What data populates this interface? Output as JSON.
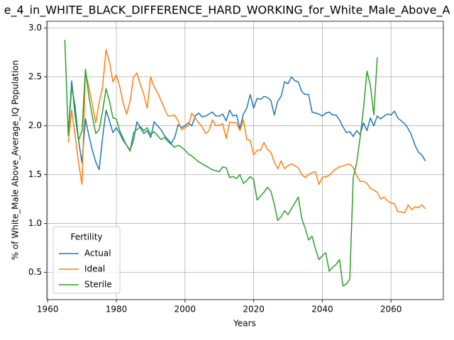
{
  "chart_data": {
    "type": "line",
    "title": "e_4_in_WHITE_BLACK_DIFFERENCE_HARD_WORKING_for_White_Male_Above_A",
    "xlabel": "Years",
    "ylabel": "% of White_Male Above_Average_IQ Population",
    "x": [
      1965,
      1966,
      1967,
      1968,
      1969,
      1970,
      1971,
      1972,
      1973,
      1974,
      1975,
      1976,
      1977,
      1978,
      1979,
      1980,
      1981,
      1982,
      1983,
      1984,
      1985,
      1986,
      1987,
      1988,
      1989,
      1990,
      1991,
      1992,
      1993,
      1994,
      1995,
      1996,
      1997,
      1998,
      1999,
      2000,
      2001,
      2002,
      2003,
      2004,
      2005,
      2006,
      2007,
      2008,
      2009,
      2010,
      2011,
      2012,
      2013,
      2014,
      2015,
      2016,
      2017,
      2018,
      2019,
      2020,
      2021,
      2022,
      2023,
      2024,
      2025,
      2026,
      2027,
      2028,
      2029,
      2030,
      2031,
      2032,
      2033,
      2034,
      2035,
      2036,
      2037,
      2038,
      2039,
      2040,
      2041,
      2042,
      2043,
      2044,
      2045,
      2046,
      2047,
      2048,
      2049,
      2050,
      2051,
      2052,
      2053,
      2054,
      2055,
      2056,
      2057,
      2058,
      2059,
      2060,
      2061,
      2062,
      2063,
      2064,
      2065,
      2066,
      2067,
      2068,
      2069,
      2070
    ],
    "series": [
      {
        "name": "Actual",
        "color": "#1f77b4",
        "values": [
          null,
          1.92,
          2.46,
          2.1,
          1.85,
          1.62,
          2.07,
          1.9,
          1.75,
          1.63,
          1.55,
          1.88,
          2.16,
          2.05,
          1.93,
          1.98,
          1.92,
          1.85,
          1.8,
          1.75,
          1.85,
          2.04,
          1.98,
          1.92,
          1.95,
          1.88,
          2.04,
          2.0,
          1.96,
          1.9,
          1.86,
          1.82,
          1.88,
          2.01,
          1.98,
          2.0,
          2.03,
          2.0,
          2.1,
          2.13,
          2.09,
          2.1,
          2.12,
          2.14,
          2.1,
          2.1,
          2.12,
          2.05,
          2.16,
          2.1,
          2.11,
          1.97,
          2.12,
          2.18,
          2.32,
          2.18,
          2.28,
          2.27,
          2.3,
          2.29,
          2.26,
          2.11,
          2.25,
          2.3,
          2.45,
          2.43,
          2.5,
          2.46,
          2.45,
          2.35,
          2.32,
          2.32,
          2.14,
          2.13,
          2.12,
          2.1,
          2.13,
          2.14,
          2.11,
          2.11,
          2.06,
          1.99,
          1.93,
          1.94,
          1.89,
          1.95,
          1.91,
          2.03,
          1.95,
          2.08,
          2.0,
          2.1,
          2.07,
          2.1,
          2.12,
          2.11,
          2.15,
          2.08,
          2.05,
          2.02,
          1.97,
          1.9,
          1.8,
          1.73,
          1.7,
          1.64
        ]
      },
      {
        "name": "Ideal",
        "color": "#ff7f0e",
        "values": [
          null,
          1.83,
          2.16,
          1.9,
          1.62,
          1.4,
          2.55,
          2.4,
          2.22,
          2.03,
          2.24,
          2.4,
          2.78,
          2.65,
          2.45,
          2.52,
          2.4,
          2.23,
          2.12,
          2.25,
          2.5,
          2.54,
          2.42,
          2.32,
          2.18,
          2.5,
          2.4,
          2.34,
          2.26,
          2.18,
          2.1,
          2.1,
          2.11,
          2.05,
          1.96,
          1.98,
          2.0,
          2.13,
          2.08,
          2.03,
          1.99,
          1.92,
          1.95,
          2.06,
          2.0,
          2.01,
          2.02,
          1.87,
          2.04,
          2.03,
          2.03,
          1.95,
          2.06,
          1.86,
          1.85,
          1.7,
          1.75,
          1.75,
          1.83,
          1.76,
          1.73,
          1.63,
          1.56,
          1.64,
          1.56,
          1.59,
          1.61,
          1.59,
          1.57,
          1.5,
          1.47,
          1.5,
          1.52,
          1.53,
          1.4,
          1.47,
          1.48,
          1.49,
          1.53,
          1.56,
          1.58,
          1.59,
          1.6,
          1.61,
          1.57,
          1.49,
          1.43,
          1.43,
          1.41,
          1.36,
          1.34,
          1.32,
          1.25,
          1.27,
          1.23,
          1.21,
          1.2,
          1.12,
          1.12,
          1.11,
          1.19,
          1.14,
          1.17,
          1.16,
          1.19,
          1.15
        ]
      },
      {
        "name": "Sterile",
        "color": "#2ca02c",
        "values": [
          2.88,
          1.9,
          2.4,
          2.2,
          1.85,
          1.95,
          2.58,
          2.3,
          2.1,
          1.92,
          1.96,
          2.15,
          2.38,
          2.25,
          2.08,
          2.07,
          1.95,
          1.87,
          1.8,
          1.74,
          1.93,
          1.96,
          1.99,
          1.95,
          1.98,
          1.91,
          1.94,
          1.9,
          1.86,
          1.88,
          1.84,
          1.81,
          1.78,
          1.8,
          1.78,
          1.75,
          1.71,
          1.69,
          1.66,
          1.63,
          1.61,
          1.59,
          1.57,
          1.55,
          1.54,
          1.53,
          1.58,
          1.57,
          1.47,
          1.48,
          1.46,
          1.5,
          1.41,
          1.44,
          1.48,
          1.45,
          1.24,
          1.28,
          1.32,
          1.37,
          1.33,
          1.2,
          1.03,
          1.07,
          1.13,
          1.09,
          1.15,
          1.21,
          1.27,
          1.05,
          0.95,
          0.83,
          0.87,
          0.74,
          0.63,
          0.67,
          0.7,
          0.51,
          0.55,
          0.58,
          0.63,
          0.36,
          0.38,
          0.43,
          1.47,
          1.62,
          1.88,
          2.18,
          2.56,
          2.41,
          2.11,
          2.7,
          null,
          null,
          null,
          null,
          null,
          null,
          null,
          null,
          null,
          null,
          null,
          null,
          null,
          null
        ]
      }
    ],
    "xlim": [
      1959.75,
      2075.25
    ],
    "ylim": [
      0.22,
      3.07
    ],
    "xticks": [
      1960,
      1980,
      2000,
      2020,
      2040,
      2060
    ],
    "yticks": [
      {
        "value": 0.5,
        "label": "0.5"
      },
      {
        "value": 1.0,
        "label": "1.0"
      },
      {
        "value": 1.5,
        "label": "1.5"
      },
      {
        "value": 2.0,
        "label": "2.0"
      },
      {
        "value": 2.5,
        "label": "2.5"
      },
      {
        "value": 3.0,
        "label": "3.0"
      }
    ],
    "grid": true,
    "legend_title": "Fertility",
    "legend_position": "lower left"
  }
}
